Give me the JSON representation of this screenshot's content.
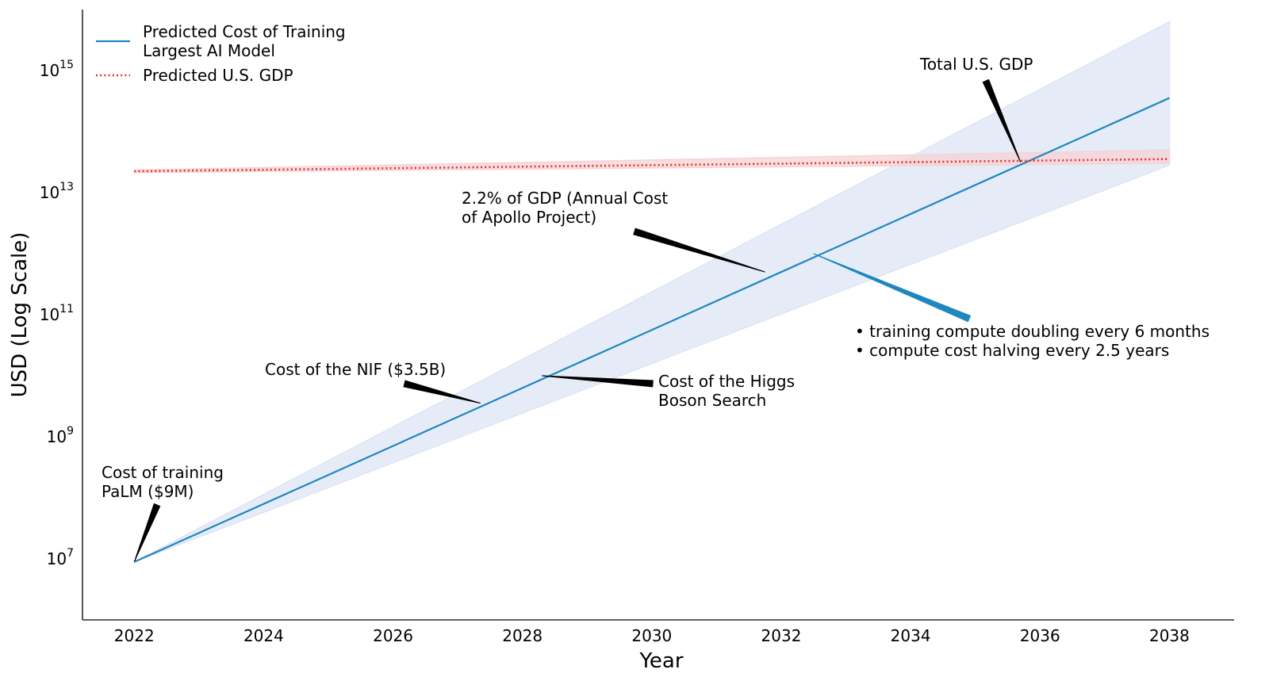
{
  "chart_data": {
    "type": "line",
    "xlabel": "Year",
    "ylabel": "USD (Log Scale)",
    "y_scale": "log",
    "xlim": [
      2021.2,
      2039.0
    ],
    "ylim_log10": [
      6.0,
      16.0
    ],
    "x_ticks": [
      2022,
      2024,
      2026,
      2028,
      2030,
      2032,
      2034,
      2036,
      2038
    ],
    "x_tick_labels": [
      "2022",
      "2024",
      "2026",
      "2028",
      "2030",
      "2032",
      "2034",
      "2036",
      "2038"
    ],
    "y_ticks": [
      {
        "base": "10",
        "exp": "7",
        "log10": 7
      },
      {
        "base": "10",
        "exp": "9",
        "log10": 9
      },
      {
        "base": "10",
        "exp": "11",
        "log10": 11
      },
      {
        "base": "10",
        "exp": "13",
        "log10": 13
      },
      {
        "base": "10",
        "exp": "15",
        "log10": 15
      }
    ],
    "grid": false,
    "legend_position": "top-left",
    "series": [
      {
        "name": "Predicted Cost of Training\nLargest AI Model",
        "style": "solid",
        "color": "#1f86c0",
        "x": [
          2022,
          2038
        ],
        "log10_y": [
          6.95,
          14.55
        ],
        "band": {
          "x": [
            2022,
            2038
          ],
          "log10_lower": [
            6.95,
            13.45
          ],
          "log10_upper": [
            6.95,
            15.8
          ],
          "color": "#dde5f4"
        }
      },
      {
        "name": "Predicted U.S. GDP",
        "style": "dotted",
        "color": "#e8302a",
        "x": [
          2022,
          2038
        ],
        "log10_y": [
          13.35,
          13.55
        ],
        "band": {
          "x": [
            2022,
            2038
          ],
          "log10_lower": [
            13.33,
            13.48
          ],
          "log10_upper": [
            13.37,
            13.7
          ],
          "color": "#f5d3d6"
        }
      }
    ],
    "annotations": [
      {
        "text": [
          "Cost of training",
          "PaLM ($9M)"
        ],
        "x": 2022.0,
        "log10_y": 6.95
      },
      {
        "text": [
          "Cost of the NIF ($3.5B)"
        ],
        "x": 2027.35,
        "log10_y": 9.55
      },
      {
        "text": [
          "Cost of the Higgs",
          "Boson Search"
        ],
        "x": 2028.3,
        "log10_y": 10.0
      },
      {
        "text": [
          "2.2% of GDP (Annual Cost",
          "of Apollo Project)"
        ],
        "x": 2031.75,
        "log10_y": 11.7
      },
      {
        "text": [
          "Total U.S. GDP"
        ],
        "x": 2035.7,
        "log10_y": 13.5
      },
      {
        "text": [
          "• training compute doubling every 6 months",
          "• compute cost halving every 2.5 years"
        ],
        "x": 2032.5,
        "log10_y": 12.0,
        "color": "#1f86c0"
      }
    ]
  }
}
